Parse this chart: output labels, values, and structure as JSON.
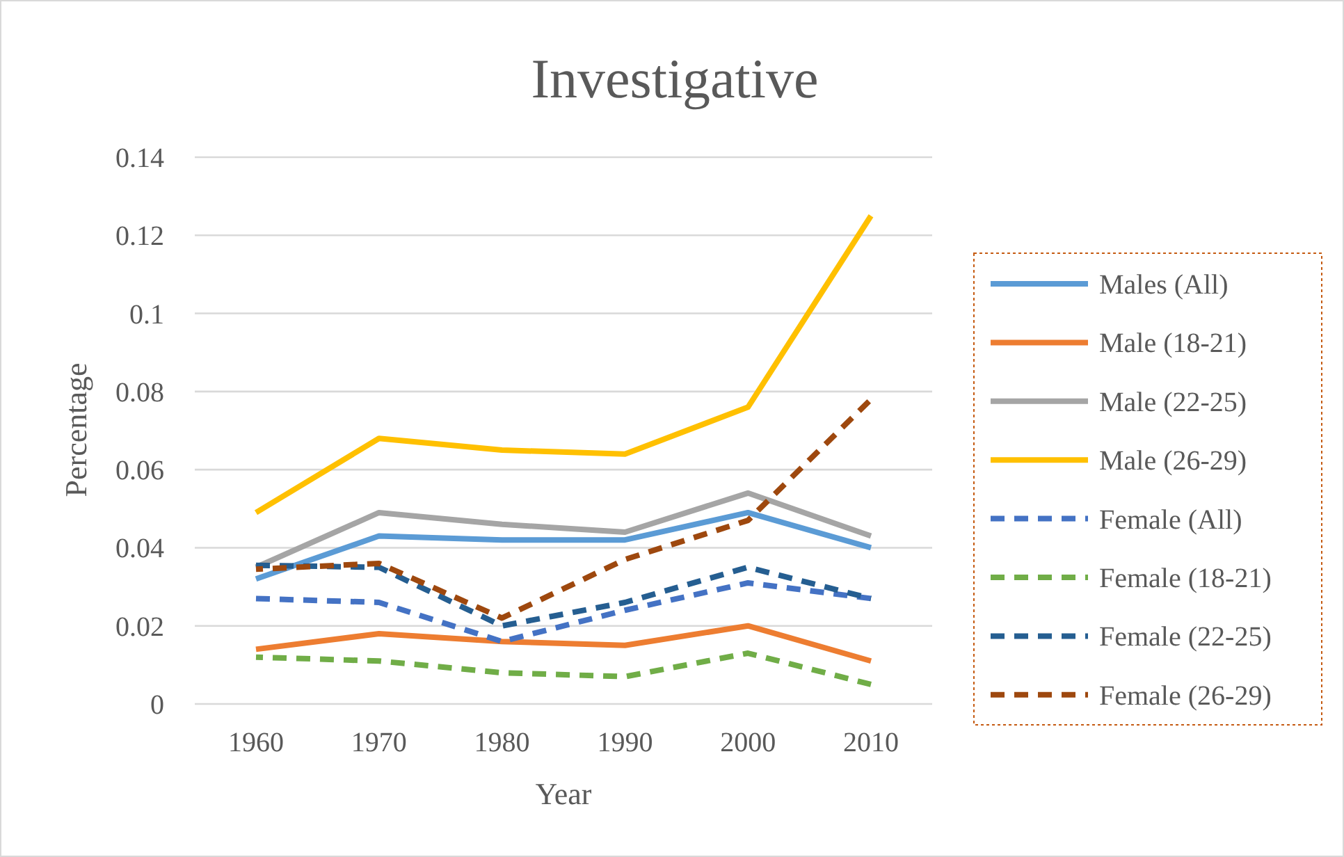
{
  "chart_data": {
    "type": "line",
    "title": "Investigative",
    "xlabel": "Year",
    "ylabel": "Percentage",
    "categories": [
      "1960",
      "1970",
      "1980",
      "1990",
      "2000",
      "2010"
    ],
    "ylim": [
      0,
      0.14
    ],
    "yticks": [
      0,
      0.02,
      0.04,
      0.06,
      0.08,
      {
        "value": 0.1,
        "label": "0.1"
      },
      0.12,
      0.14
    ],
    "grid": "y",
    "legend": "right",
    "series": [
      {
        "name": "Males (All)",
        "color": "#5b9bd5",
        "line_style": "solid",
        "values": [
          0.032,
          0.043,
          0.042,
          0.042,
          0.049,
          0.04
        ]
      },
      {
        "name": "Male (18-21)",
        "color": "#ed7d31",
        "line_style": "solid",
        "values": [
          0.014,
          0.018,
          0.016,
          0.015,
          0.02,
          0.011
        ]
      },
      {
        "name": "Male (22-25)",
        "color": "#a5a5a5",
        "line_style": "solid",
        "values": [
          0.035,
          0.049,
          0.046,
          0.044,
          0.054,
          0.043
        ]
      },
      {
        "name": "Male (26-29)",
        "color": "#ffc000",
        "line_style": "solid",
        "values": [
          0.049,
          0.068,
          0.065,
          0.064,
          0.076,
          0.125
        ]
      },
      {
        "name": "Female (All)",
        "color": "#4472c4",
        "line_style": "dashed",
        "values": [
          0.027,
          0.026,
          0.016,
          0.024,
          0.031,
          0.027
        ]
      },
      {
        "name": "Female (18-21)",
        "color": "#70ad47",
        "line_style": "dashed",
        "values": [
          0.012,
          0.011,
          0.008,
          0.007,
          0.013,
          0.005
        ]
      },
      {
        "name": "Female (22-25)",
        "color": "#255e91",
        "line_style": "dashed",
        "values": [
          0.0355,
          0.035,
          0.02,
          0.026,
          0.035,
          0.027
        ]
      },
      {
        "name": "Female (26-29)",
        "color": "#9e480e",
        "line_style": "dashed",
        "values": [
          0.0345,
          0.036,
          0.022,
          0.037,
          0.047,
          0.078
        ]
      }
    ]
  }
}
